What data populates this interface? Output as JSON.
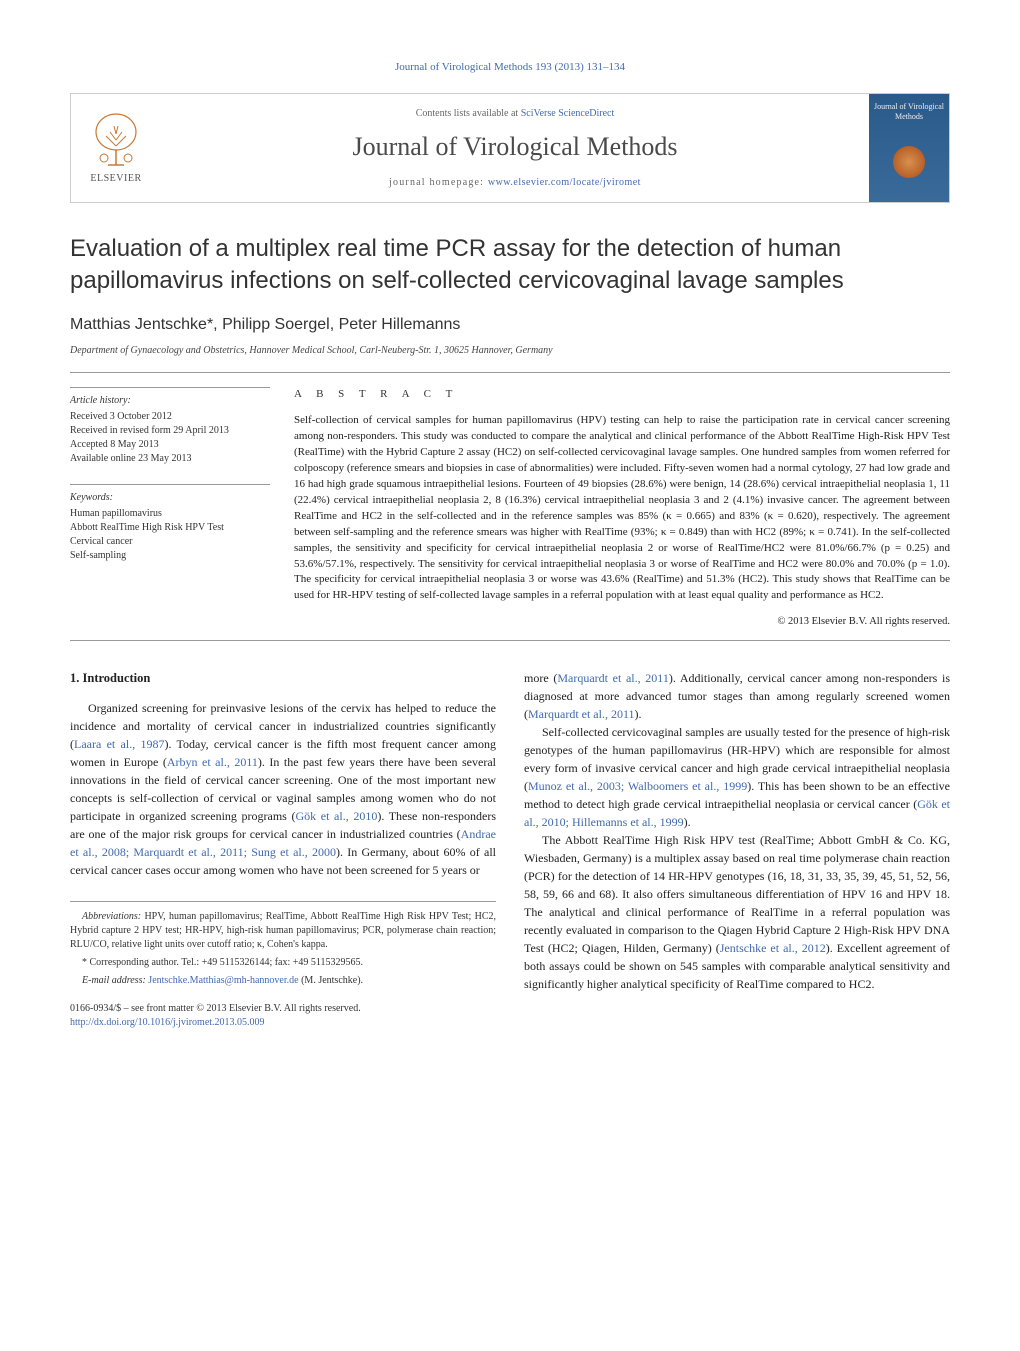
{
  "header": {
    "citation_line": "Journal of Virological Methods 193 (2013) 131–134",
    "contents_line_prefix": "Contents lists available at ",
    "contents_link": "SciVerse ScienceDirect",
    "journal_title": "Journal of Virological Methods",
    "homepage_prefix": "journal homepage: ",
    "homepage_link": "www.elsevier.com/locate/jviromet",
    "publisher_label": "ELSEVIER",
    "cover_title": "Journal of Virological Methods"
  },
  "article": {
    "title": "Evaluation of a multiplex real time PCR assay for the detection of human papillomavirus infections on self-collected cervicovaginal lavage samples",
    "authors": "Matthias Jentschke*, Philipp Soergel, Peter Hillemanns",
    "affiliation": "Department of Gynaecology and Obstetrics, Hannover Medical School, Carl-Neuberg-Str. 1, 30625 Hannover, Germany"
  },
  "meta": {
    "history_label": "Article history:",
    "history": [
      "Received 3 October 2012",
      "Received in revised form 29 April 2013",
      "Accepted 8 May 2013",
      "Available online 23 May 2013"
    ],
    "keywords_label": "Keywords:",
    "keywords": [
      "Human papillomavirus",
      "Abbott RealTime High Risk HPV Test",
      "Cervical cancer",
      "Self-sampling"
    ]
  },
  "abstract": {
    "heading": "A B S T R A C T",
    "text": "Self-collection of cervical samples for human papillomavirus (HPV) testing can help to raise the participation rate in cervical cancer screening among non-responders. This study was conducted to compare the analytical and clinical performance of the Abbott RealTime High-Risk HPV Test (RealTime) with the Hybrid Capture 2 assay (HC2) on self-collected cervicovaginal lavage samples. One hundred samples from women referred for colposcopy (reference smears and biopsies in case of abnormalities) were included. Fifty-seven women had a normal cytology, 27 had low grade and 16 had high grade squamous intraepithelial lesions. Fourteen of 49 biopsies (28.6%) were benign, 14 (28.6%) cervical intraepithelial neoplasia 1, 11 (22.4%) cervical intraepithelial neoplasia 2, 8 (16.3%) cervical intraepithelial neoplasia 3 and 2 (4.1%) invasive cancer. The agreement between RealTime and HC2 in the self-collected and in the reference samples was 85% (κ = 0.665) and 83% (κ = 0.620), respectively. The agreement between self-sampling and the reference smears was higher with RealTime (93%; κ = 0.849) than with HC2 (89%; κ = 0.741). In the self-collected samples, the sensitivity and specificity for cervical intraepithelial neoplasia 2 or worse of RealTime/HC2 were 81.0%/66.7% (p = 0.25) and 53.6%/57.1%, respectively. The sensitivity for cervical intraepithelial neoplasia 3 or worse of RealTime and HC2 were 80.0% and 70.0% (p = 1.0). The specificity for cervical intraepithelial neoplasia 3 or worse was 43.6% (RealTime) and 51.3% (HC2). This study shows that RealTime can be used for HR-HPV testing of self-collected lavage samples in a referral population with at least equal quality and performance as HC2.",
    "copyright": "© 2013 Elsevier B.V. All rights reserved."
  },
  "body": {
    "section_heading": "1.  Introduction",
    "left_paragraphs": [
      "Organized screening for preinvasive lesions of the cervix has helped to reduce the incidence and mortality of cervical cancer in industrialized countries significantly (<span class=\"cite\">Laara et al., 1987</span>). Today, cervical cancer is the fifth most frequent cancer among women in Europe (<span class=\"cite\">Arbyn et al., 2011</span>). In the past few years there have been several innovations in the field of cervical cancer screening. One of the most important new concepts is self-collection of cervical or vaginal samples among women who do not participate in organized screening programs (<span class=\"cite\">Gök et al., 2010</span>). These non-responders are one of the major risk groups for cervical cancer in industrialized countries (<span class=\"cite\">Andrae et al., 2008; Marquardt et al., 2011; Sung et al., 2000</span>). In Germany, about 60% of all cervical cancer cases occur among women who have not been screened for 5 years or"
    ],
    "right_paragraphs": [
      "more (<span class=\"cite\">Marquardt et al., 2011</span>). Additionally, cervical cancer among non-responders is diagnosed at more advanced tumor stages than among regularly screened women (<span class=\"cite\">Marquardt et al., 2011</span>).",
      "Self-collected cervicovaginal samples are usually tested for the presence of high-risk genotypes of the human papillomavirus (HR-HPV) which are responsible for almost every form of invasive cervical cancer and high grade cervical intraepithelial neoplasia (<span class=\"cite\">Munoz et al., 2003; Walboomers et al., 1999</span>). This has been shown to be an effective method to detect high grade cervical intraepithelial neoplasia or cervical cancer (<span class=\"cite\">Gök et al., 2010; Hillemanns et al., 1999</span>).",
      "The Abbott RealTime High Risk HPV test (RealTime; Abbott GmbH & Co. KG, Wiesbaden, Germany) is a multiplex assay based on real time polymerase chain reaction (PCR) for the detection of 14 HR-HPV genotypes (16, 18, 31, 33, 35, 39, 45, 51, 52, 56, 58, 59, 66 and 68). It also offers simultaneous differentiation of HPV 16 and HPV 18. The analytical and clinical performance of RealTime in a referral population was recently evaluated in comparison to the Qiagen Hybrid Capture 2 High-Risk HPV DNA Test (HC2; Qiagen, Hilden, Germany) (<span class=\"cite\">Jentschke et al., 2012</span>). Excellent agreement of both assays could be shown on 545 samples with comparable analytical sensitivity and significantly higher analytical specificity of RealTime compared to HC2."
    ]
  },
  "footnotes": {
    "abbrev_label": "Abbreviations:",
    "abbrev_text": " HPV, human papillomavirus; RealTime, Abbott RealTime High Risk HPV Test; HC2, Hybrid capture 2 HPV test; HR-HPV, high-risk human papillomavirus; PCR, polymerase chain reaction; RLU/CO, relative light units over cutoff ratio; κ, Cohen's kappa.",
    "corr_label": "* Corresponding author. ",
    "corr_text": "Tel.: +49 5115326144; fax: +49 5115329565.",
    "email_label": "E-mail address: ",
    "email": "Jentschke.Matthias@mh-hannover.de",
    "email_suffix": " (M. Jentschke)."
  },
  "doi": {
    "line1": "0166-0934/$ – see front matter © 2013 Elsevier B.V. All rights reserved.",
    "link": "http://dx.doi.org/10.1016/j.jviromet.2013.05.009"
  }
}
